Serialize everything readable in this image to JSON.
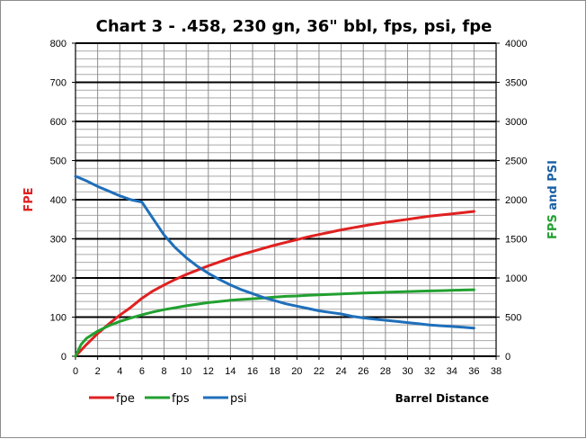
{
  "chart_data": {
    "type": "line",
    "title": "Chart 3 -  .458, 230 gn, 36\" bbl, fps, psi, fpe",
    "xlabel": "Barrel Distance",
    "ylabel_left": "FPE",
    "ylabel_right_parts": [
      {
        "text": "FPS",
        "color": "#22a030"
      },
      {
        "text": " and ",
        "color": "#1a5fa5"
      },
      {
        "text": "PSI",
        "color": "#1a5fa5"
      }
    ],
    "xlim": [
      0,
      38
    ],
    "x_ticks": [
      0,
      2,
      4,
      6,
      8,
      10,
      12,
      14,
      16,
      18,
      20,
      22,
      24,
      26,
      28,
      30,
      32,
      34,
      36,
      38
    ],
    "ylim_left": [
      0,
      800
    ],
    "left_ticks": [
      0,
      100,
      200,
      300,
      400,
      500,
      600,
      700,
      800
    ],
    "ylim_right": [
      0,
      4000
    ],
    "right_ticks": [
      0,
      500,
      1000,
      1500,
      2000,
      2500,
      3000,
      3500,
      4000
    ],
    "grid": true,
    "legend_position": "bottom-left",
    "series": [
      {
        "name": "fpe",
        "axis": "left",
        "color": "#e02020",
        "x": [
          0,
          1,
          2,
          3,
          4,
          5,
          6,
          7,
          8,
          9,
          10,
          11,
          12,
          13,
          14,
          15,
          16,
          17,
          18,
          19,
          20,
          21,
          22,
          23,
          24,
          25,
          26,
          27,
          28,
          29,
          30,
          31,
          32,
          33,
          34,
          35,
          36
        ],
        "values": [
          0,
          30,
          58,
          82,
          105,
          125,
          148,
          167,
          182,
          196,
          209,
          220,
          231,
          241,
          251,
          260,
          268,
          276,
          284,
          291,
          298,
          305,
          311,
          317,
          323,
          328,
          333,
          338,
          342,
          346,
          350,
          354,
          358,
          361,
          364,
          367,
          370
        ]
      },
      {
        "name": "fps",
        "axis": "right",
        "color": "#22a030",
        "x": [
          0,
          0.5,
          1,
          2,
          3,
          4,
          5,
          6,
          7,
          8,
          9,
          10,
          11,
          12,
          13,
          14,
          15,
          16,
          17,
          18,
          19,
          20,
          21,
          22,
          23,
          24,
          25,
          26,
          27,
          28,
          29,
          30,
          31,
          32,
          33,
          34,
          35,
          36
        ],
        "values": [
          0,
          150,
          230,
          320,
          390,
          445,
          490,
          530,
          565,
          595,
          620,
          645,
          665,
          685,
          700,
          715,
          725,
          735,
          745,
          755,
          765,
          770,
          778,
          785,
          790,
          796,
          802,
          807,
          812,
          817,
          822,
          826,
          830,
          834,
          838,
          842,
          846,
          850
        ]
      },
      {
        "name": "psi",
        "axis": "right",
        "color": "#1f6fba",
        "x": [
          0,
          1,
          2,
          3,
          4,
          5,
          6,
          7,
          8,
          9,
          10,
          11,
          12,
          13,
          14,
          15,
          16,
          17,
          18,
          19,
          20,
          21,
          22,
          23,
          24,
          25,
          26,
          27,
          28,
          29,
          30,
          31,
          32,
          33,
          34,
          35,
          36
        ],
        "values": [
          2300,
          2240,
          2170,
          2110,
          2050,
          2000,
          1970,
          1760,
          1550,
          1390,
          1260,
          1150,
          1060,
          980,
          910,
          850,
          800,
          750,
          710,
          670,
          640,
          610,
          580,
          560,
          540,
          510,
          490,
          475,
          460,
          445,
          430,
          415,
          400,
          390,
          380,
          370,
          360
        ]
      }
    ]
  }
}
